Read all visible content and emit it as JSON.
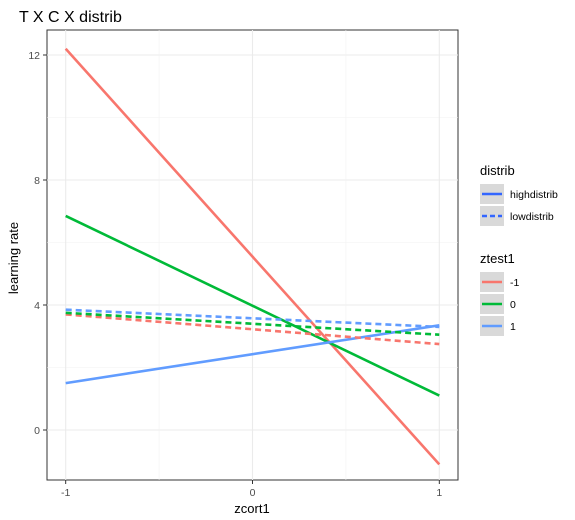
{
  "chart_data": {
    "type": "line",
    "title": "T X C X distrib",
    "xlabel": "zcort1",
    "ylabel": "learning rate",
    "xlim": [
      -1.1,
      1.1
    ],
    "ylim": [
      -1.6,
      12.8
    ],
    "x_ticks": [
      -1,
      0,
      1
    ],
    "x_tick_labels": [
      "-1",
      "0",
      "1"
    ],
    "y_ticks": [
      0,
      4,
      8,
      12
    ],
    "y_tick_labels": [
      "0",
      "4",
      "8",
      "12"
    ],
    "grid": true,
    "legend_position": "right",
    "legends": [
      {
        "title": "distrib",
        "entries": [
          {
            "label": "highdistrib",
            "line": "solid",
            "color": "#3366ff"
          },
          {
            "label": "lowdistrib",
            "line": "dashed",
            "color": "#3366ff"
          }
        ]
      },
      {
        "title": "ztest1",
        "entries": [
          {
            "label": "-1",
            "line": "solid",
            "color": "#f8766d"
          },
          {
            "label": "0",
            "line": "solid",
            "color": "#00ba38"
          },
          {
            "label": "1",
            "line": "solid",
            "color": "#619cff"
          }
        ]
      }
    ],
    "series": [
      {
        "ztest1": "-1",
        "distrib": "highdistrib",
        "color": "#f8766d",
        "dash": false,
        "x": [
          -1,
          1
        ],
        "y": [
          12.2,
          -1.1
        ]
      },
      {
        "ztest1": "0",
        "distrib": "highdistrib",
        "color": "#00ba38",
        "dash": false,
        "x": [
          -1,
          1
        ],
        "y": [
          6.85,
          1.1
        ]
      },
      {
        "ztest1": "1",
        "distrib": "highdistrib",
        "color": "#619cff",
        "dash": false,
        "x": [
          -1,
          1
        ],
        "y": [
          1.5,
          3.35
        ]
      },
      {
        "ztest1": "-1",
        "distrib": "lowdistrib",
        "color": "#f8766d",
        "dash": true,
        "x": [
          -1,
          1
        ],
        "y": [
          3.7,
          2.75
        ]
      },
      {
        "ztest1": "0",
        "distrib": "lowdistrib",
        "color": "#00ba38",
        "dash": true,
        "x": [
          -1,
          1
        ],
        "y": [
          3.75,
          3.05
        ]
      },
      {
        "ztest1": "1",
        "distrib": "lowdistrib",
        "color": "#619cff",
        "dash": true,
        "x": [
          -1,
          1
        ],
        "y": [
          3.85,
          3.3
        ]
      }
    ]
  }
}
